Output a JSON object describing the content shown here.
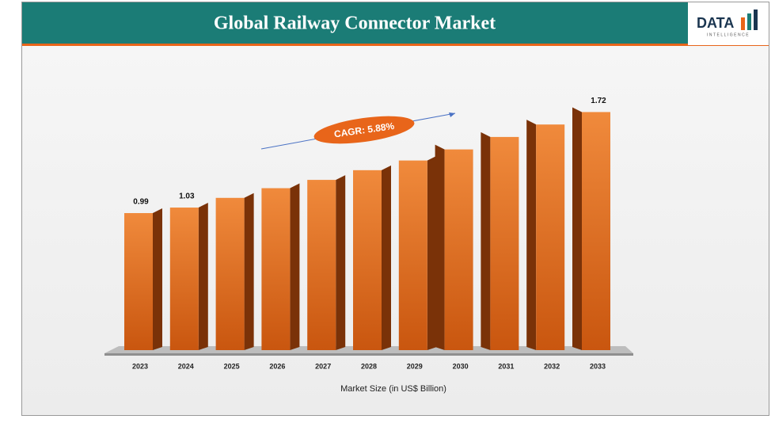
{
  "chart_data": {
    "type": "bar3d",
    "title": "Global Railway Connector Market",
    "logo": "DATA",
    "logo_sub": "INTELLIGENCE",
    "categories": [
      "2023",
      "2024",
      "2025",
      "2026",
      "2027",
      "2028",
      "2029",
      "2030",
      "2031",
      "2032",
      "2033"
    ],
    "values": [
      0.99,
      1.03,
      1.1,
      1.17,
      1.23,
      1.3,
      1.37,
      1.45,
      1.54,
      1.63,
      1.72
    ],
    "value_labels": [
      "0.99",
      "1.03",
      null,
      null,
      null,
      null,
      null,
      null,
      null,
      null,
      "1.72"
    ],
    "color": "#e8651a",
    "side_color": "#7a3208",
    "ylim": [
      0,
      1.9
    ],
    "annotation": "CAGR: 5.88%",
    "x_label": "Market Size (in US$ Billion)"
  }
}
